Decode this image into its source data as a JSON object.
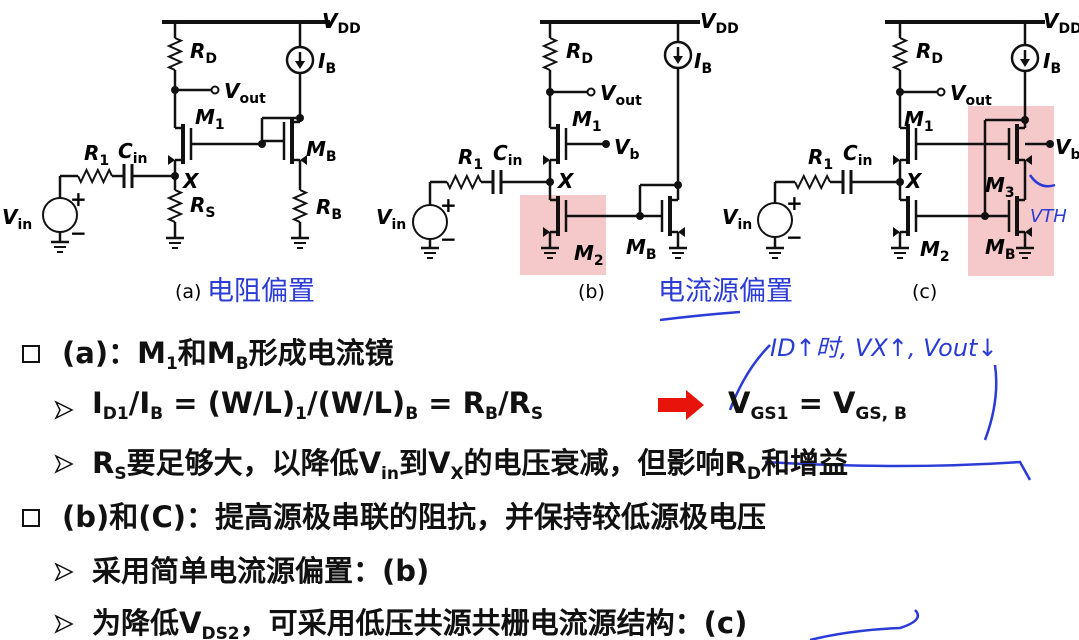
{
  "circuit_a": {
    "labels": [
      [
        "V",
        "DD"
      ],
      [
        "R",
        "D"
      ],
      [
        "I",
        "B"
      ],
      [
        "V",
        "out"
      ],
      [
        "M",
        "1"
      ],
      [
        "M",
        "B"
      ],
      [
        "R",
        "1"
      ],
      [
        "C",
        "in"
      ],
      [
        "X"
      ],
      [
        "V",
        "in"
      ],
      [
        "R",
        "S"
      ],
      [
        "R",
        "B"
      ],
      [
        "+"
      ],
      [
        "−"
      ]
    ],
    "label": "(a)",
    "caption": "电阻偏置"
  },
  "circuit_b": {
    "labels": [
      [
        "V",
        "DD"
      ],
      [
        "R",
        "D"
      ],
      [
        "I",
        "B"
      ],
      [
        "V",
        "out"
      ],
      [
        "M",
        "1"
      ],
      [
        "V",
        "b"
      ],
      [
        "R",
        "1"
      ],
      [
        "C",
        "in"
      ],
      [
        "X"
      ],
      [
        "V",
        "in"
      ],
      [
        "M",
        "2"
      ],
      [
        "M",
        "B"
      ],
      [
        "+"
      ],
      [
        "−"
      ]
    ],
    "label": "(b)",
    "caption": "电流源偏置"
  },
  "circuit_c": {
    "labels": [
      [
        "V",
        "DD"
      ],
      [
        "R",
        "D"
      ],
      [
        "I",
        "B"
      ],
      [
        "V",
        "out"
      ],
      [
        "M",
        "1"
      ],
      [
        "V",
        "b"
      ],
      [
        "R",
        "1"
      ],
      [
        "C",
        "in"
      ],
      [
        "X"
      ],
      [
        "V",
        "in"
      ],
      [
        "M",
        "2"
      ],
      [
        "M",
        "3"
      ],
      [
        "M",
        "B"
      ],
      [
        "+"
      ],
      [
        "−"
      ]
    ],
    "label": "(c)"
  },
  "annotations": [
    "ID↑时, VX↑, Vout↓",
    "VTH"
  ],
  "bullets": [
    [
      "(a)：M",
      "1",
      "和M",
      "B",
      "形成电流镜"
    ],
    [
      "I",
      "D1",
      "/I",
      "B",
      " = (W/L)",
      "1",
      "/(W/L)",
      "B",
      " = R",
      "B",
      "/R",
      "S"
    ],
    [
      "R",
      "S",
      "要足够大，以降低V",
      "in",
      "到V",
      "X",
      "的电压衰减，但影响R",
      "D",
      "和增益"
    ],
    [
      "(b)和(C)：提高源极串联的阻抗，并保持较低源极电压"
    ],
    [
      "采用简单电流源偏置：(b)"
    ],
    [
      "为降低V",
      "DS2",
      "，可采用低压共源共栅电流源结构：(c)"
    ]
  ],
  "implies": [
    "V",
    "GS1",
    " = V",
    "GS, B"
  ]
}
